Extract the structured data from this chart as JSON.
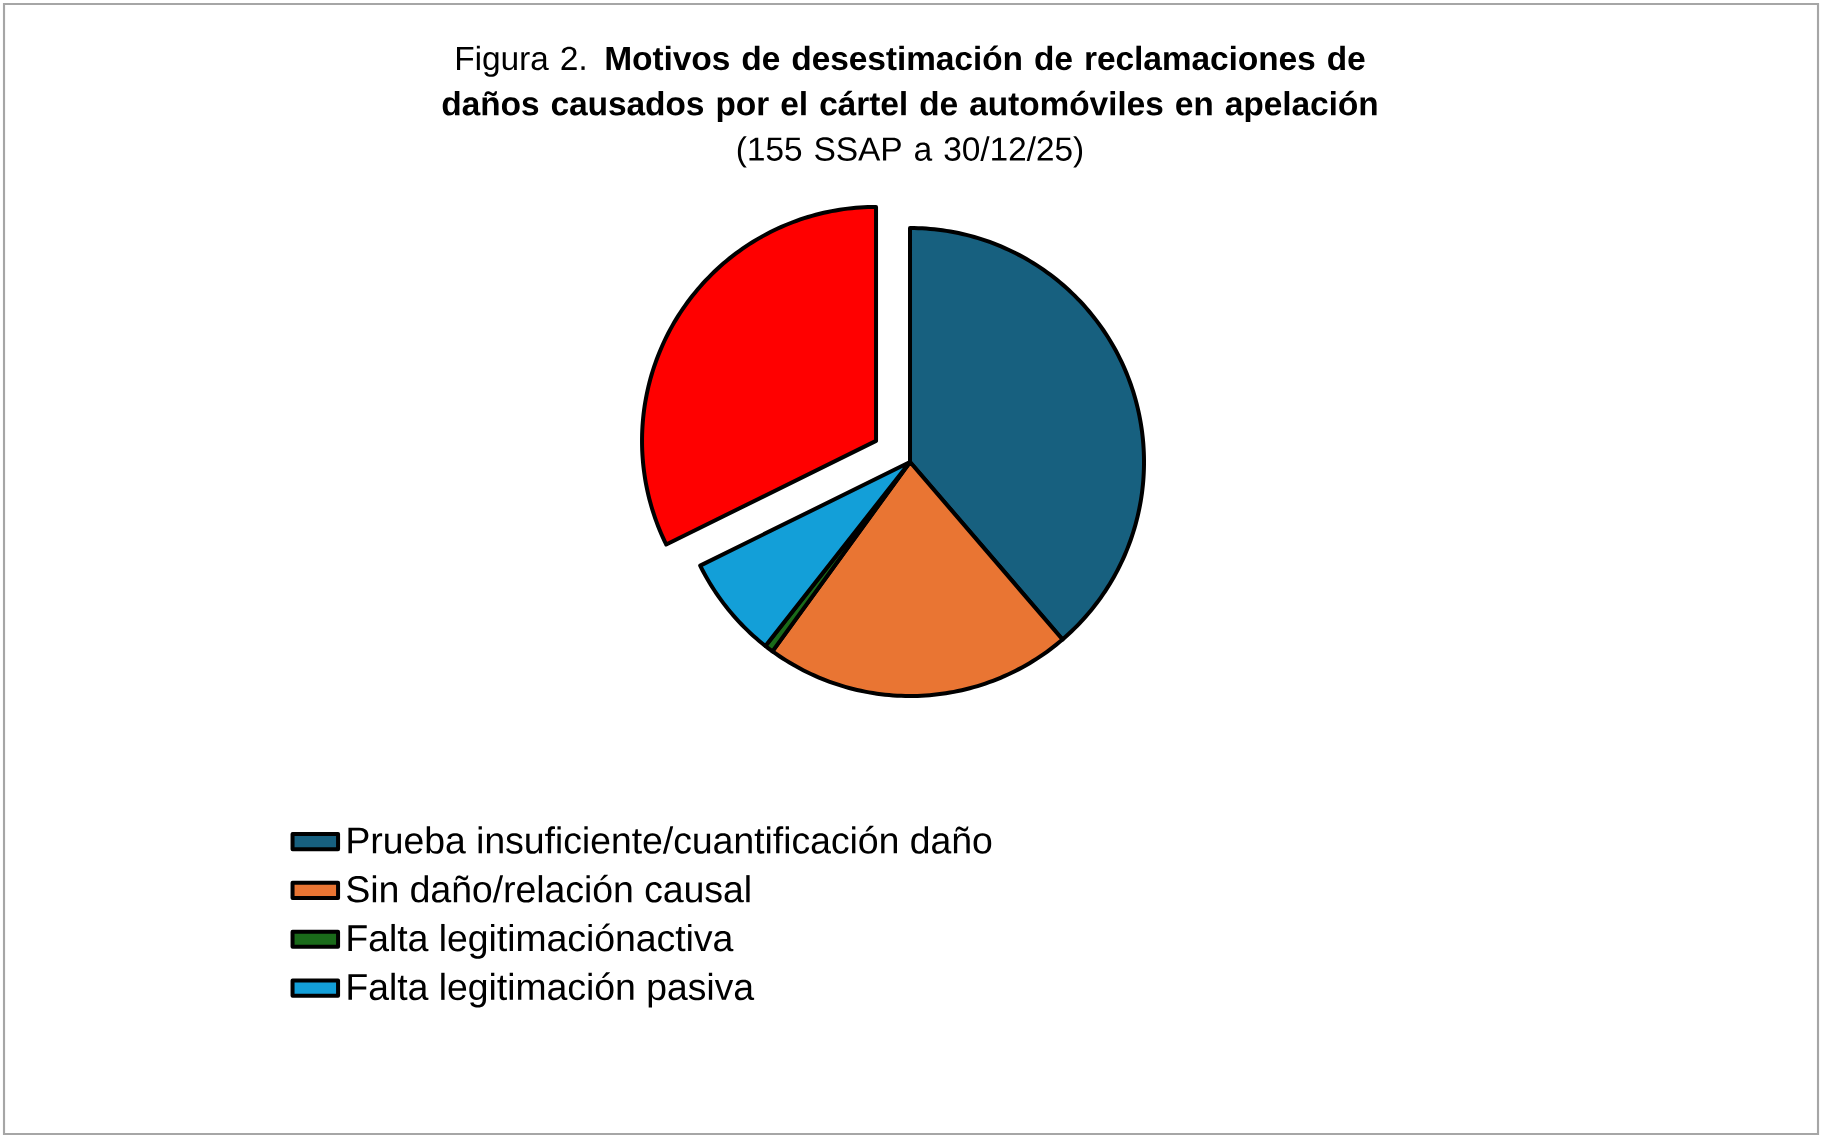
{
  "chart_data": {
    "type": "pie",
    "title": "Figura 2. **Motivos de desestimación de reclamaciones de daños causados por el cártel de automóviles en apelación**",
    "subtitle": "(155  SSAP a 30/12/25)",
    "categories": [
      "Prueba insuficiente/cuantificación daño",
      "Sin daño/relación causal",
      "Falta legitimaciónactiva",
      "Falta legitimación pasiva",
      null
    ],
    "values": [
      38.7,
      21.3,
      0.6,
      7.1,
      32.3
    ],
    "colors": [
      "#17607f",
      "#e97533",
      "#1a6b1a",
      "#139fd8",
      "#ff0000"
    ],
    "legend": "bottom"
  }
}
